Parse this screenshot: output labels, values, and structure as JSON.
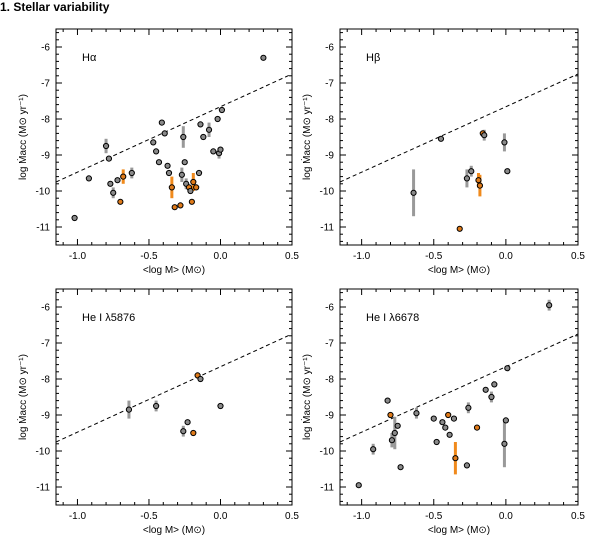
{
  "section_title": "1. Stellar variability",
  "colors": {
    "grey": "#8a8a8a",
    "orange": "#e07b1a",
    "errorbar_grey": "#999999",
    "errorbar_orange": "#f08a1c"
  },
  "chart_data": [
    {
      "type": "scatter",
      "title": "Hα",
      "xlabel": "<log M> (M⊙)",
      "ylabel": "log Ṁacc (M⊙ yr⁻¹)",
      "xlim": [
        -1.15,
        0.5
      ],
      "ylim": [
        -11.5,
        -5.5
      ],
      "xticks": [
        -1.0,
        -0.5,
        0.0,
        0.5
      ],
      "xtick_labels": [
        "-1.0",
        "-0.5",
        "0.0",
        "0.5"
      ],
      "yticks": [
        -11,
        -10,
        -9,
        -8,
        -7,
        -6
      ],
      "ytick_labels": [
        "-11",
        "-10",
        "-9",
        "-8",
        "-7",
        "-6"
      ],
      "fit_line": {
        "x": [
          -1.15,
          0.5
        ],
        "y": [
          -9.75,
          -6.75
        ],
        "style": "dashed"
      },
      "points": [
        {
          "x": -1.02,
          "y": -10.75,
          "c": "grey"
        },
        {
          "x": -0.92,
          "y": -9.65,
          "c": "grey"
        },
        {
          "x": -0.8,
          "y": -8.75,
          "c": "grey",
          "err": 0.2
        },
        {
          "x": -0.78,
          "y": -9.1,
          "c": "grey"
        },
        {
          "x": -0.77,
          "y": -9.8,
          "c": "grey"
        },
        {
          "x": -0.75,
          "y": -10.05,
          "c": "grey",
          "err": 0.15
        },
        {
          "x": -0.72,
          "y": -9.7,
          "c": "grey"
        },
        {
          "x": -0.7,
          "y": -10.3,
          "c": "orange"
        },
        {
          "x": -0.68,
          "y": -9.6,
          "c": "orange",
          "err": 0.2
        },
        {
          "x": -0.62,
          "y": -9.5,
          "c": "grey",
          "err": 0.15
        },
        {
          "x": -0.47,
          "y": -8.65,
          "c": "grey"
        },
        {
          "x": -0.45,
          "y": -8.9,
          "c": "grey"
        },
        {
          "x": -0.43,
          "y": -9.2,
          "c": "grey"
        },
        {
          "x": -0.41,
          "y": -8.1,
          "c": "grey"
        },
        {
          "x": -0.39,
          "y": -8.4,
          "c": "grey"
        },
        {
          "x": -0.37,
          "y": -9.3,
          "c": "grey"
        },
        {
          "x": -0.36,
          "y": -9.5,
          "c": "grey"
        },
        {
          "x": -0.34,
          "y": -9.9,
          "c": "orange",
          "err": 0.3
        },
        {
          "x": -0.32,
          "y": -10.45,
          "c": "orange"
        },
        {
          "x": -0.28,
          "y": -10.4,
          "c": "orange"
        },
        {
          "x": -0.27,
          "y": -9.55,
          "c": "grey",
          "err": 0.2
        },
        {
          "x": -0.26,
          "y": -8.5,
          "c": "grey",
          "err": 0.3
        },
        {
          "x": -0.25,
          "y": -9.2,
          "c": "grey"
        },
        {
          "x": -0.24,
          "y": -9.8,
          "c": "grey",
          "err": 0.15
        },
        {
          "x": -0.22,
          "y": -9.9,
          "c": "orange"
        },
        {
          "x": -0.21,
          "y": -10.0,
          "c": "grey"
        },
        {
          "x": -0.2,
          "y": -10.3,
          "c": "orange"
        },
        {
          "x": -0.19,
          "y": -9.75,
          "c": "orange",
          "err": 0.25
        },
        {
          "x": -0.17,
          "y": -9.9,
          "c": "orange"
        },
        {
          "x": -0.15,
          "y": -9.5,
          "c": "grey"
        },
        {
          "x": -0.14,
          "y": -8.15,
          "c": "grey"
        },
        {
          "x": -0.12,
          "y": -8.5,
          "c": "grey"
        },
        {
          "x": -0.08,
          "y": -8.3,
          "c": "grey",
          "err": 0.2
        },
        {
          "x": -0.05,
          "y": -8.9,
          "c": "grey"
        },
        {
          "x": -0.02,
          "y": -8.0,
          "c": "grey"
        },
        {
          "x": -0.01,
          "y": -8.95,
          "c": "grey",
          "err": 0.15
        },
        {
          "x": 0.0,
          "y": -8.85,
          "c": "grey"
        },
        {
          "x": 0.01,
          "y": -7.75,
          "c": "grey"
        },
        {
          "x": 0.3,
          "y": -6.3,
          "c": "grey"
        }
      ]
    },
    {
      "type": "scatter",
      "title": "Hβ",
      "xlabel": "<log M> (M⊙)",
      "ylabel": "log Ṁacc (M⊙ yr⁻¹)",
      "xlim": [
        -1.15,
        0.5
      ],
      "ylim": [
        -11.5,
        -5.5
      ],
      "xticks": [
        -1.0,
        -0.5,
        0.0,
        0.5
      ],
      "xtick_labels": [
        "-1.0",
        "-0.5",
        "0.0",
        "0.5"
      ],
      "yticks": [
        -11,
        -10,
        -9,
        -8,
        -7,
        -6
      ],
      "ytick_labels": [
        "-11",
        "-10",
        "-9",
        "-8",
        "-7",
        "-6"
      ],
      "fit_line": {
        "x": [
          -1.15,
          0.5
        ],
        "y": [
          -9.75,
          -6.75
        ],
        "style": "dashed"
      },
      "points": [
        {
          "x": -0.64,
          "y": -10.05,
          "c": "grey",
          "err": 0.65
        },
        {
          "x": -0.45,
          "y": -8.55,
          "c": "grey"
        },
        {
          "x": -0.32,
          "y": -11.05,
          "c": "orange"
        },
        {
          "x": -0.27,
          "y": -9.65,
          "c": "grey",
          "err": 0.25
        },
        {
          "x": -0.24,
          "y": -9.45,
          "c": "grey",
          "err": 0.15
        },
        {
          "x": -0.19,
          "y": -9.7,
          "c": "orange",
          "err": 0.2
        },
        {
          "x": -0.18,
          "y": -9.85,
          "c": "orange",
          "err": 0.3
        },
        {
          "x": -0.16,
          "y": -8.4,
          "c": "orange"
        },
        {
          "x": -0.15,
          "y": -8.45,
          "c": "grey",
          "err": 0.15
        },
        {
          "x": -0.01,
          "y": -8.65,
          "c": "grey",
          "err": 0.25
        },
        {
          "x": 0.01,
          "y": -9.45,
          "c": "grey"
        }
      ]
    },
    {
      "type": "scatter",
      "title": "He I λ5876",
      "xlabel": "<log M> (M⊙)",
      "ylabel": "log Ṁacc (M⊙ yr⁻¹)",
      "xlim": [
        -1.15,
        0.5
      ],
      "ylim": [
        -11.5,
        -5.5
      ],
      "xticks": [
        -1.0,
        -0.5,
        0.0,
        0.5
      ],
      "xtick_labels": [
        "-1.0",
        "-0.5",
        "0.0",
        "0.5"
      ],
      "yticks": [
        -11,
        -10,
        -9,
        -8,
        -7,
        -6
      ],
      "ytick_labels": [
        "-11",
        "-10",
        "-9",
        "-8",
        "-7",
        "-6"
      ],
      "fit_line": {
        "x": [
          -1.15,
          0.5
        ],
        "y": [
          -9.75,
          -6.75
        ],
        "style": "dashed"
      },
      "points": [
        {
          "x": -0.64,
          "y": -8.85,
          "c": "grey",
          "err": 0.25
        },
        {
          "x": -0.45,
          "y": -8.75,
          "c": "grey",
          "err": 0.15
        },
        {
          "x": -0.26,
          "y": -9.45,
          "c": "grey",
          "err": 0.15
        },
        {
          "x": -0.23,
          "y": -9.2,
          "c": "grey"
        },
        {
          "x": -0.19,
          "y": -9.5,
          "c": "orange"
        },
        {
          "x": -0.16,
          "y": -7.9,
          "c": "orange"
        },
        {
          "x": -0.14,
          "y": -8.0,
          "c": "grey"
        },
        {
          "x": 0.0,
          "y": -8.75,
          "c": "grey"
        }
      ]
    },
    {
      "type": "scatter",
      "title": "He I λ6678",
      "xlabel": "<log M> (M⊙)",
      "ylabel": "log Ṁacc (M⊙ yr⁻¹)",
      "xlim": [
        -1.15,
        0.5
      ],
      "ylim": [
        -11.5,
        -5.5
      ],
      "xticks": [
        -1.0,
        -0.5,
        0.0,
        0.5
      ],
      "xtick_labels": [
        "-1.0",
        "-0.5",
        "0.0",
        "0.5"
      ],
      "yticks": [
        -11,
        -10,
        -9,
        -8,
        -7,
        -6
      ],
      "ytick_labels": [
        "-11",
        "-10",
        "-9",
        "-8",
        "-7",
        "-6"
      ],
      "fit_line": {
        "x": [
          -1.15,
          0.5
        ],
        "y": [
          -9.75,
          -6.75
        ],
        "style": "dashed"
      },
      "points": [
        {
          "x": -1.02,
          "y": -10.95,
          "c": "grey"
        },
        {
          "x": -0.92,
          "y": -9.95,
          "c": "grey",
          "err": 0.15
        },
        {
          "x": -0.82,
          "y": -8.6,
          "c": "grey"
        },
        {
          "x": -0.8,
          "y": -9.0,
          "c": "orange"
        },
        {
          "x": -0.79,
          "y": -9.7,
          "c": "grey",
          "err": 0.2
        },
        {
          "x": -0.77,
          "y": -9.5,
          "c": "grey",
          "err": 0.45
        },
        {
          "x": -0.75,
          "y": -9.3,
          "c": "grey"
        },
        {
          "x": -0.73,
          "y": -10.45,
          "c": "grey"
        },
        {
          "x": -0.62,
          "y": -8.95,
          "c": "grey",
          "err": 0.15
        },
        {
          "x": -0.5,
          "y": -9.1,
          "c": "grey"
        },
        {
          "x": -0.48,
          "y": -9.75,
          "c": "grey"
        },
        {
          "x": -0.44,
          "y": -9.2,
          "c": "grey"
        },
        {
          "x": -0.42,
          "y": -9.35,
          "c": "grey"
        },
        {
          "x": -0.4,
          "y": -9.0,
          "c": "orange"
        },
        {
          "x": -0.39,
          "y": -9.55,
          "c": "grey"
        },
        {
          "x": -0.36,
          "y": -9.1,
          "c": "grey"
        },
        {
          "x": -0.35,
          "y": -10.2,
          "c": "orange",
          "err": 0.45
        },
        {
          "x": -0.27,
          "y": -10.4,
          "c": "grey"
        },
        {
          "x": -0.26,
          "y": -8.8,
          "c": "grey",
          "err": 0.15
        },
        {
          "x": -0.2,
          "y": -9.35,
          "c": "orange"
        },
        {
          "x": -0.14,
          "y": -8.3,
          "c": "grey"
        },
        {
          "x": -0.1,
          "y": -8.5,
          "c": "grey",
          "err": 0.15
        },
        {
          "x": -0.08,
          "y": -8.15,
          "c": "grey"
        },
        {
          "x": -0.01,
          "y": -9.8,
          "c": "grey",
          "err": 0.65
        },
        {
          "x": 0.0,
          "y": -9.15,
          "c": "grey"
        },
        {
          "x": 0.01,
          "y": -7.7,
          "c": "grey"
        },
        {
          "x": 0.3,
          "y": -5.95,
          "c": "grey",
          "err": 0.15
        }
      ]
    }
  ]
}
